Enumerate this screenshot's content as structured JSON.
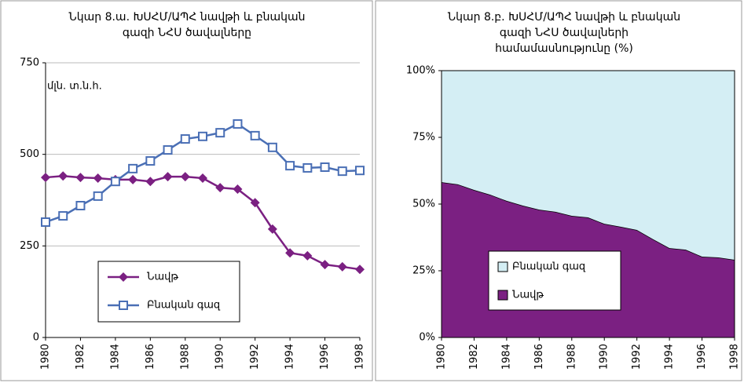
{
  "chart_data": [
    {
      "type": "line",
      "title": [
        "Նկար 8.ա. ԽՍՀՄ/ԱՊՀ նավթի և բնական",
        "գազի ՆՀՍ ծավալները"
      ],
      "annotation": "մլն. տ.ն.հ.",
      "x": [
        1980,
        1981,
        1982,
        1983,
        1984,
        1985,
        1986,
        1987,
        1988,
        1989,
        1990,
        1991,
        1992,
        1993,
        1994,
        1995,
        1996,
        1997,
        1998
      ],
      "xlim": [
        1980,
        1998
      ],
      "xticks": [
        1980,
        1982,
        1984,
        1986,
        1988,
        1990,
        1992,
        1994,
        1996,
        1998
      ],
      "ylim": [
        0,
        750
      ],
      "yticks": [
        0,
        250,
        500,
        750
      ],
      "grid": true,
      "legend": "bottom-left",
      "series": [
        {
          "name": "Նավթ",
          "color": "#7b2082",
          "marker": "diamond",
          "values": [
            437,
            441,
            437,
            435,
            431,
            431,
            426,
            439,
            439,
            435,
            409,
            405,
            368,
            296,
            231,
            223,
            199,
            193,
            186
          ]
        },
        {
          "name": "Բնական գազ",
          "color": "#4a6fb5",
          "marker": "square",
          "values": [
            315,
            332,
            360,
            386,
            426,
            461,
            482,
            512,
            542,
            549,
            559,
            583,
            551,
            519,
            469,
            463,
            465,
            454,
            456
          ]
        }
      ]
    },
    {
      "type": "area",
      "stacked": true,
      "title": [
        "Նկար 8.բ. ԽՍՀՄ/ԱՊՀ նավթի և բնական",
        "գազի ՆՀՍ ծավալների",
        "համամասնությունը (%)"
      ],
      "x": [
        1980,
        1981,
        1982,
        1983,
        1984,
        1985,
        1986,
        1987,
        1988,
        1989,
        1990,
        1991,
        1992,
        1993,
        1994,
        1995,
        1996,
        1997,
        1998
      ],
      "xlim": [
        1980,
        1998
      ],
      "xticks": [
        1980,
        1982,
        1984,
        1986,
        1988,
        1990,
        1992,
        1994,
        1996,
        1998
      ],
      "ylim": [
        0,
        100
      ],
      "yticks": [
        {
          "value": 0,
          "label": "0%"
        },
        {
          "value": 25,
          "label": "25%"
        },
        {
          "value": 50,
          "label": "50%"
        },
        {
          "value": 75,
          "label": "75%"
        },
        {
          "value": 100,
          "label": "100%"
        }
      ],
      "legend": "bottom-left",
      "series": [
        {
          "name": "Նավթ",
          "color": "#7b2082",
          "values": [
            58.2,
            57.4,
            55.3,
            53.5,
            51.2,
            49.4,
            47.9,
            47.1,
            45.6,
            45,
            42.6,
            41.5,
            40.3,
            36.8,
            33.5,
            32.9,
            30.3,
            30,
            29.1
          ]
        },
        {
          "name": "Բնական գազ",
          "color": "#d4eef4",
          "values": [
            41.8,
            42.6,
            44.7,
            46.5,
            48.8,
            50.6,
            52.1,
            52.9,
            54.4,
            55,
            57.4,
            58.5,
            59.7,
            63.2,
            66.5,
            67.1,
            69.7,
            70,
            70.9
          ]
        }
      ]
    }
  ]
}
